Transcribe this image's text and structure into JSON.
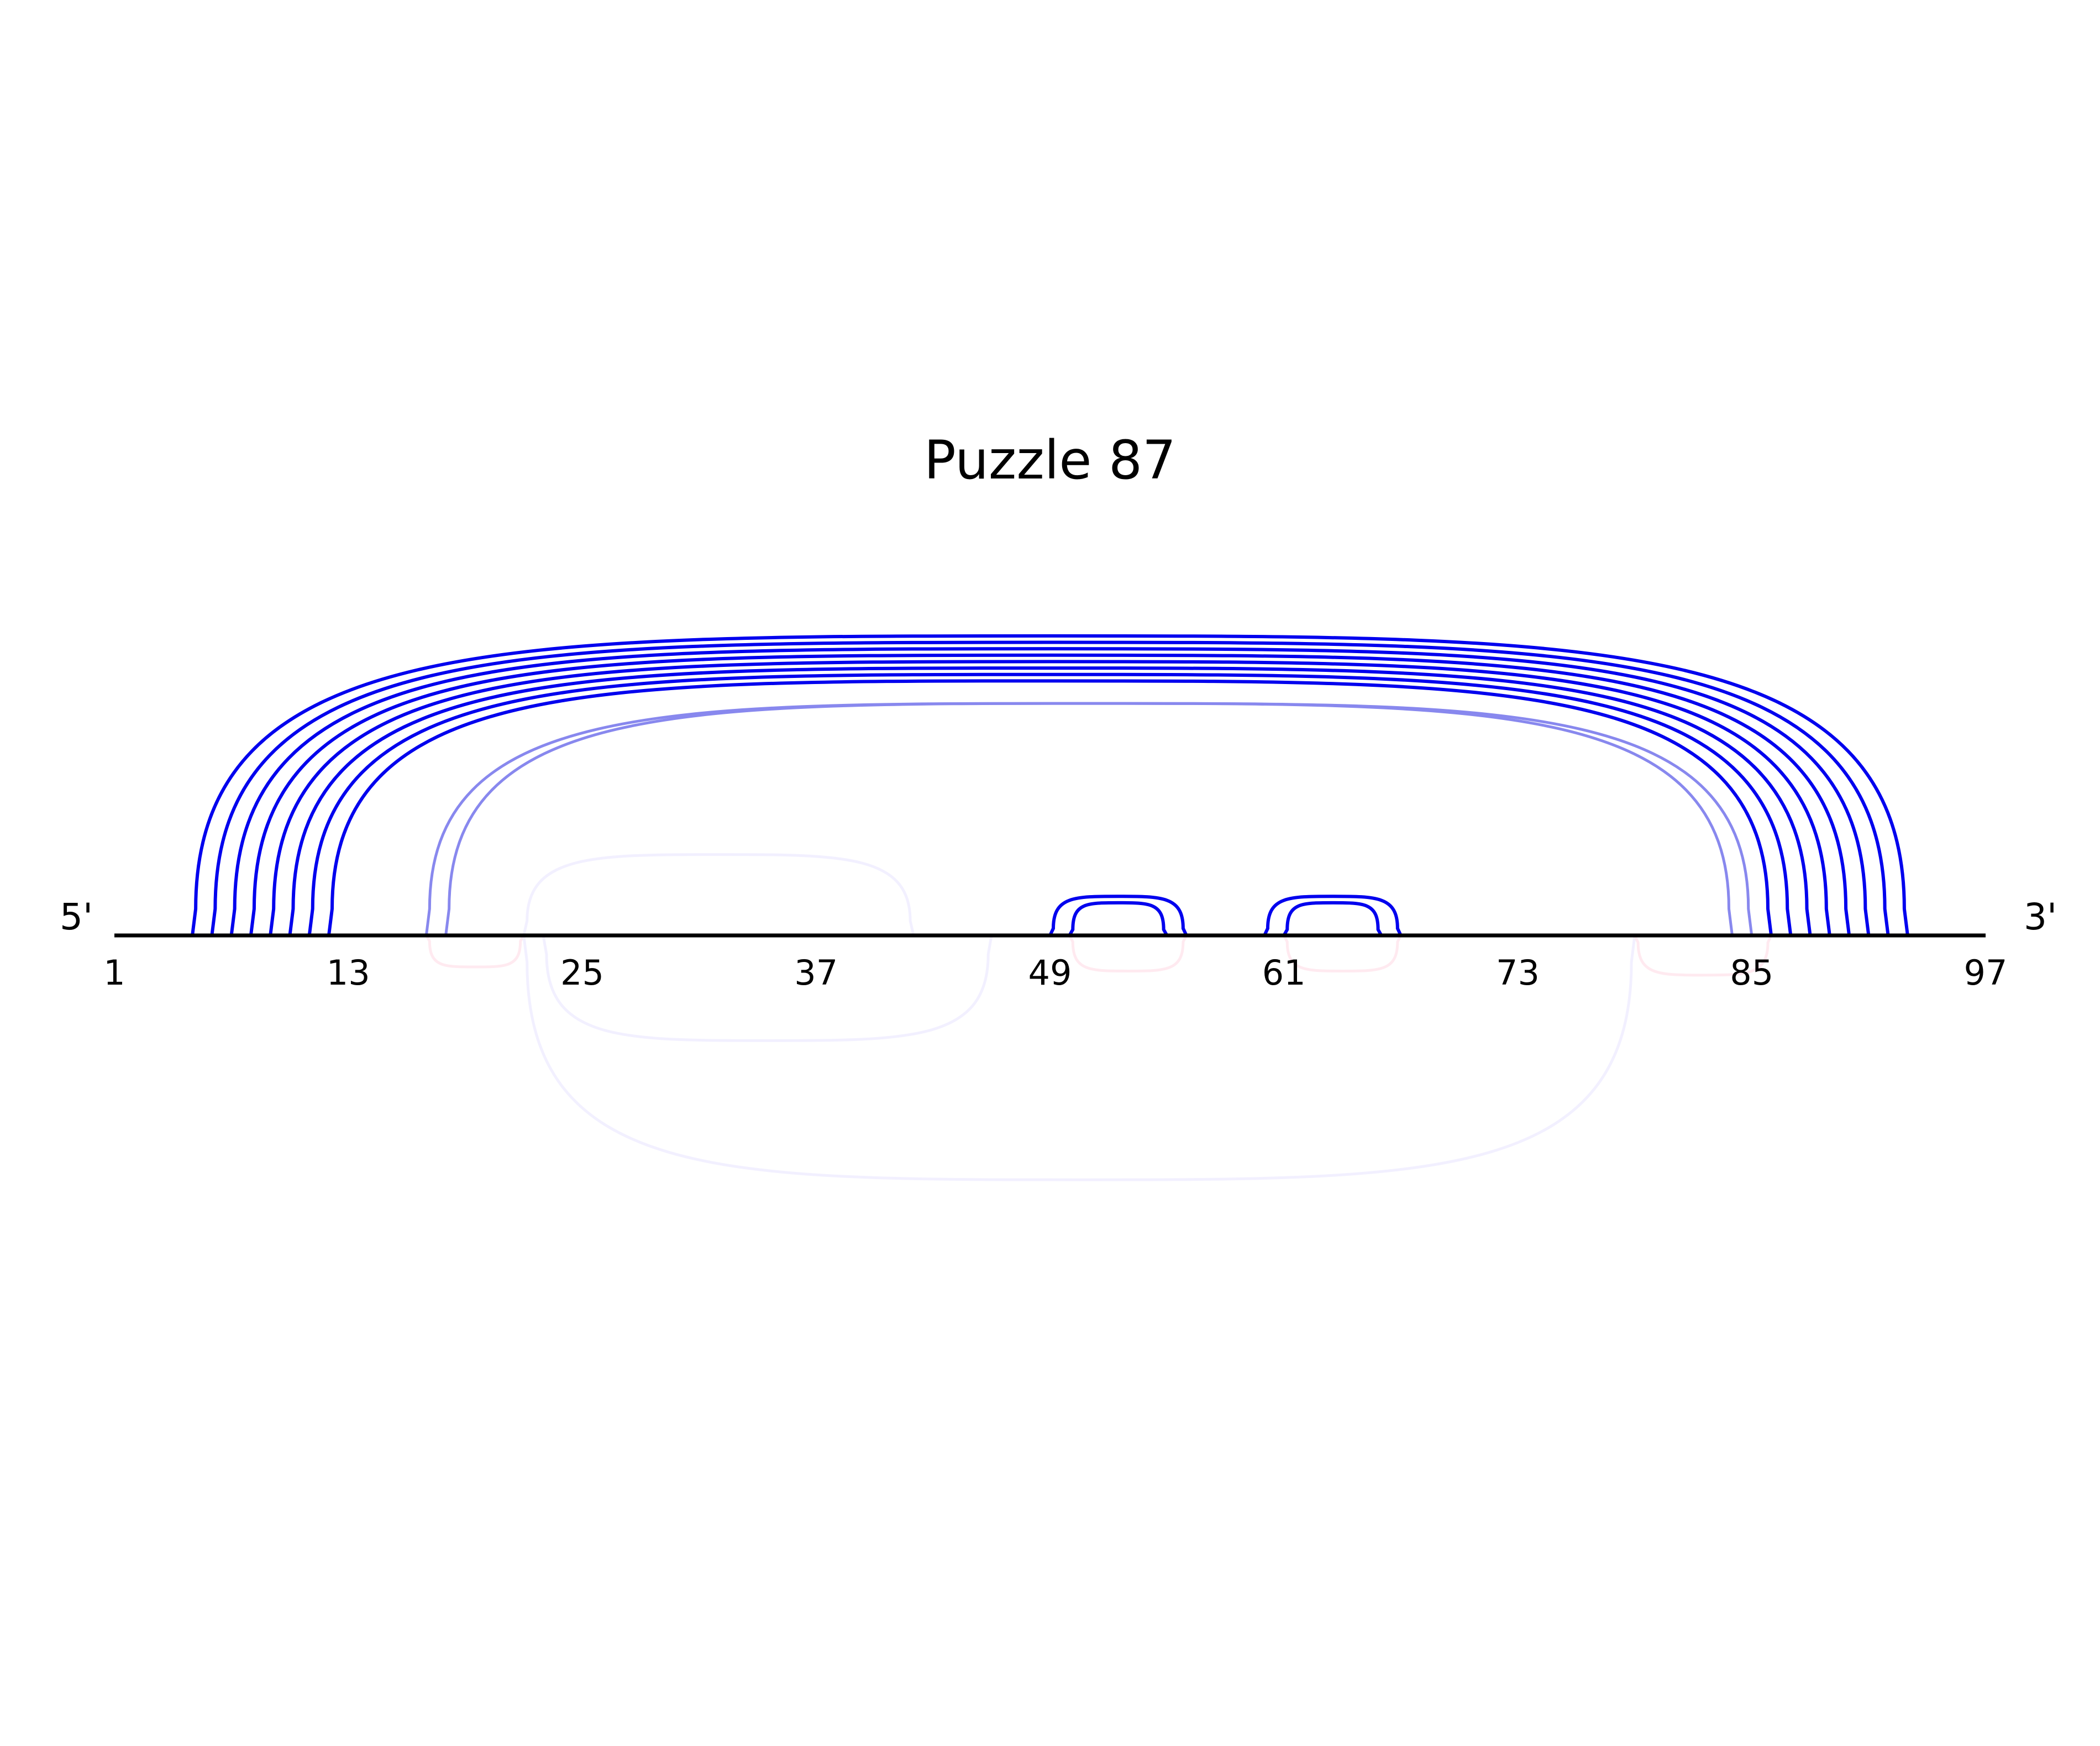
{
  "title": "Puzzle 87",
  "end_labels": {
    "five_prime": "5'",
    "three_prime": "3'"
  },
  "sequence": {
    "length": 97,
    "start": 1,
    "end": 97
  },
  "tick_labels": [
    "1",
    "13",
    "25",
    "37",
    "49",
    "61",
    "73",
    "85",
    "97"
  ],
  "colors": {
    "backbone": "#000000",
    "arc_strong": "#0000ee",
    "arc_medium": "#8888ee",
    "arc_faint_blue": "#f2f0ff",
    "arc_faint_red": "#ffeaf0"
  },
  "arcs_above": [
    {
      "i": 5,
      "j": 93,
      "color": "arc_strong"
    },
    {
      "i": 6,
      "j": 92,
      "color": "arc_strong"
    },
    {
      "i": 7,
      "j": 91,
      "color": "arc_strong"
    },
    {
      "i": 8,
      "j": 90,
      "color": "arc_strong"
    },
    {
      "i": 9,
      "j": 89,
      "color": "arc_strong"
    },
    {
      "i": 10,
      "j": 88,
      "color": "arc_strong"
    },
    {
      "i": 11,
      "j": 87,
      "color": "arc_strong"
    },
    {
      "i": 12,
      "j": 86,
      "color": "arc_strong"
    },
    {
      "i": 17,
      "j": 84,
      "color": "arc_medium"
    },
    {
      "i": 18,
      "j": 85,
      "color": "arc_medium"
    },
    {
      "i": 22,
      "j": 42,
      "color": "arc_faint_blue"
    },
    {
      "i": 49,
      "j": 56,
      "color": "arc_strong"
    },
    {
      "i": 50,
      "j": 55,
      "color": "arc_strong"
    },
    {
      "i": 60,
      "j": 67,
      "color": "arc_strong"
    },
    {
      "i": 61,
      "j": 66,
      "color": "arc_strong"
    }
  ],
  "arcs_below": [
    {
      "i": 17,
      "j": 22,
      "color": "arc_faint_red"
    },
    {
      "i": 23,
      "j": 46,
      "color": "arc_faint_blue"
    },
    {
      "i": 22,
      "j": 79,
      "color": "arc_faint_blue"
    },
    {
      "i": 50,
      "j": 56,
      "color": "arc_faint_red"
    },
    {
      "i": 61,
      "j": 67,
      "color": "arc_faint_red"
    },
    {
      "i": 79,
      "j": 86,
      "color": "arc_faint_red"
    }
  ]
}
